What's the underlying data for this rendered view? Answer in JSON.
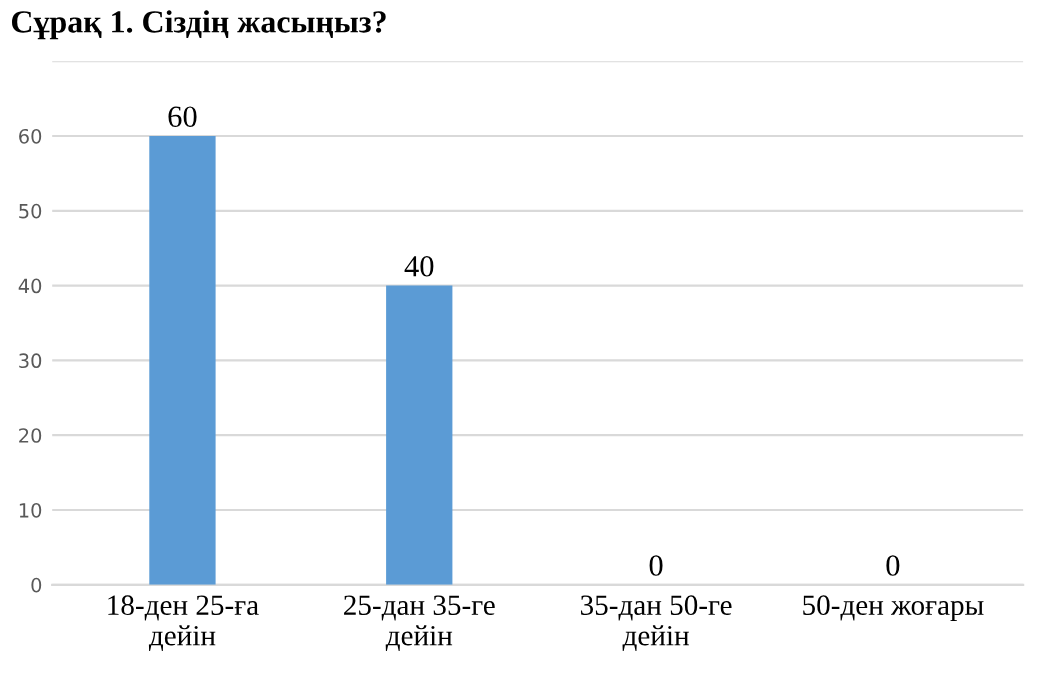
{
  "chart_data": {
    "type": "bar",
    "title": "Сұрақ 1. Сіздің жасыңыз?",
    "categories": [
      "18-ден 25-ға\nдейін",
      "25-дан 35-ге\nдейін",
      "35-дан 50-ге\nдейін",
      "50-ден жоғары"
    ],
    "values": [
      60,
      40,
      0,
      0
    ],
    "color": "#5b9bd5",
    "ylim": [
      0,
      70
    ],
    "yticks": [
      0,
      10,
      20,
      30,
      40,
      50,
      60,
      {
        "value": 70,
        "label": null
      }
    ],
    "grid": "y",
    "data_labels": true,
    "legend": false
  }
}
